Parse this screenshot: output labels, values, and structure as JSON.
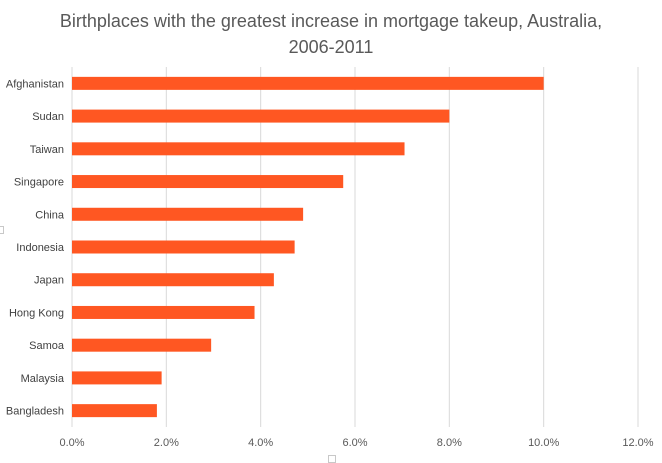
{
  "chart_data": {
    "type": "bar",
    "orientation": "horizontal",
    "title_line1": "Birthplaces with the greatest increase in mortgage takeup, Australia,",
    "title_line2": "2006-2011",
    "categories": [
      "Afghanistan",
      "Sudan",
      "Taiwan",
      "Singapore",
      "China",
      "Indonesia",
      "Japan",
      "Hong Kong",
      "Samoa",
      "Malaysia",
      "Bangladesh"
    ],
    "values": [
      10.0,
      8.0,
      7.05,
      5.75,
      4.9,
      4.72,
      4.28,
      3.87,
      2.95,
      1.9,
      1.8
    ],
    "xlim": [
      0,
      12
    ],
    "x_ticks": [
      "0.0%",
      "2.0%",
      "4.0%",
      "6.0%",
      "8.0%",
      "10.0%",
      "12.0%"
    ],
    "grid": true,
    "bar_color": "#ff5722",
    "grid_color": "#d9d9d9",
    "xlabel": "",
    "ylabel": ""
  }
}
